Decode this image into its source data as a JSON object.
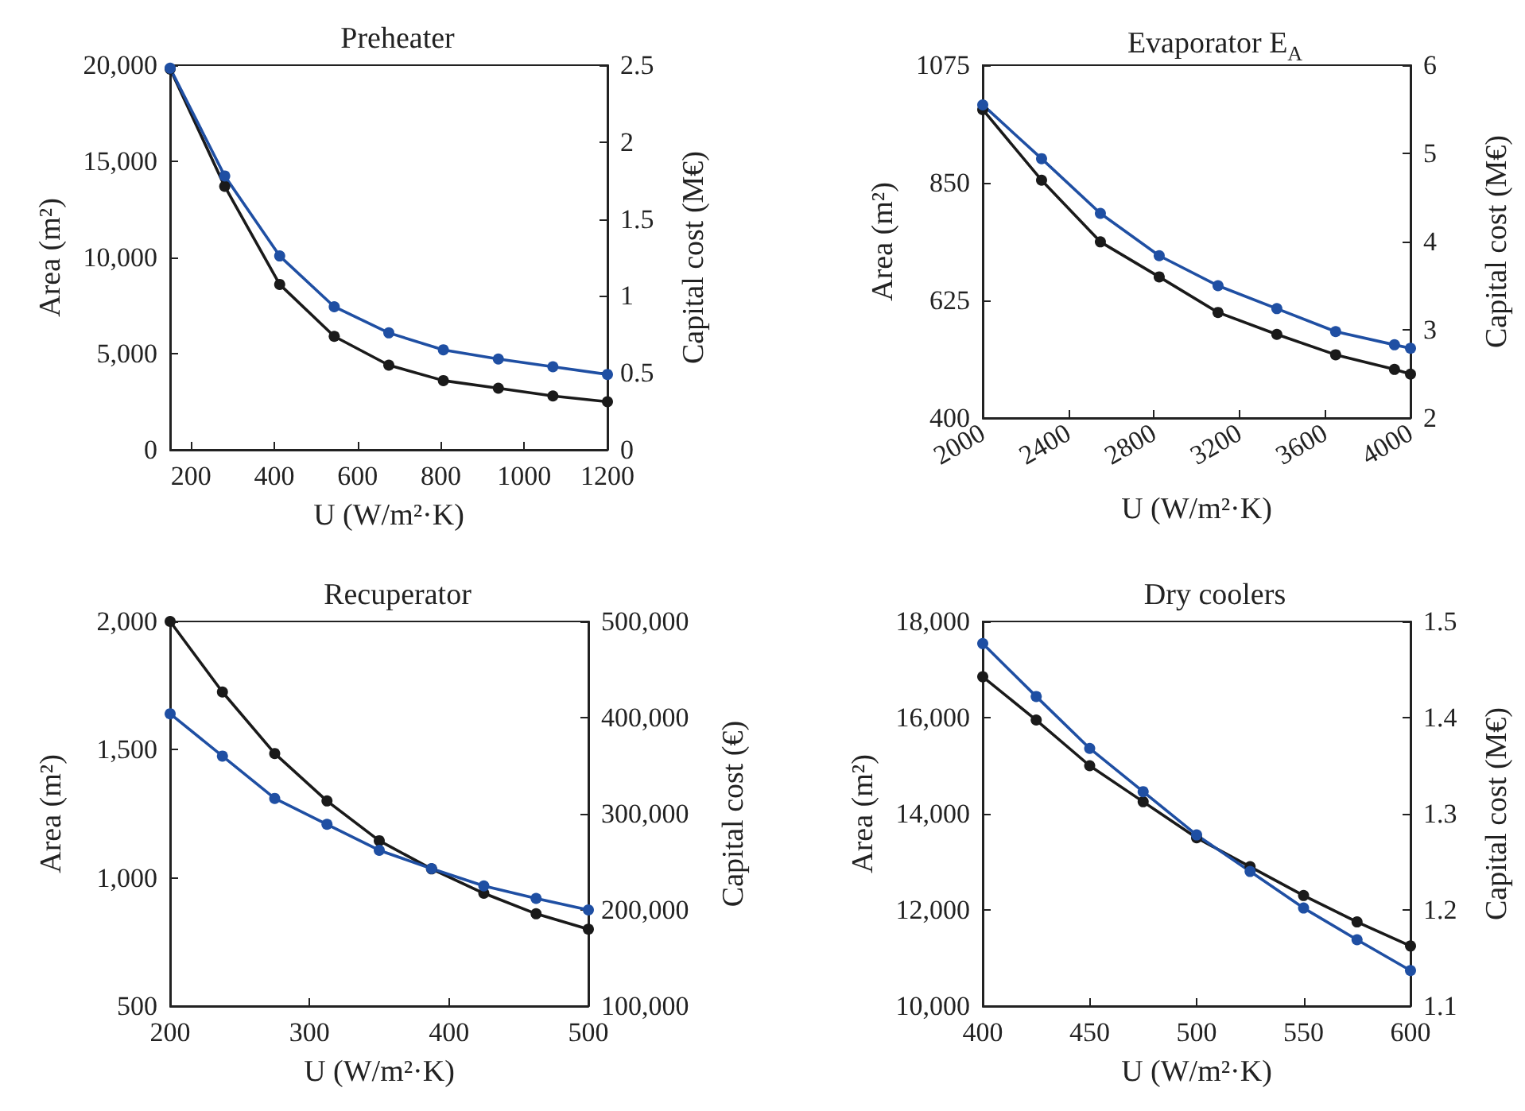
{
  "chart_data": [
    {
      "type": "line",
      "title": "Preheater",
      "xlabel": "U (W/m²·K)",
      "ylabel": "Area (m²)",
      "y2label": "Capital cost (M€)",
      "marker": "circle",
      "line_style": "solid",
      "x": [
        150,
        281,
        413,
        544,
        675,
        806,
        938,
        1069,
        1200
      ],
      "xlim": [
        150,
        1200
      ],
      "xticks": [
        200,
        400,
        600,
        800,
        1000,
        1200
      ],
      "ylim": [
        0,
        20000
      ],
      "yticks": [
        0,
        {
          "value": 5000,
          "label": "5,000"
        },
        {
          "value": 10000,
          "label": "10,000"
        },
        {
          "value": 15000,
          "label": "15,000"
        },
        {
          "value": 20000,
          "label": "20,000"
        }
      ],
      "y2lim": [
        0,
        2.5
      ],
      "y2ticks": [
        0,
        0.5,
        1,
        1.5,
        2,
        2.5
      ],
      "series": [
        {
          "color": "#1a1a1a",
          "values": [
            19800,
            13700,
            8600,
            5900,
            4400,
            3600,
            3200,
            2800,
            2500
          ]
        },
        {
          "color": "#1f4fa3",
          "axis": "y2",
          "values": [
            2.48,
            1.78,
            1.26,
            0.93,
            0.76,
            0.65,
            0.59,
            0.54,
            0.49
          ]
        }
      ]
    },
    {
      "type": "line",
      "title": "Evaporator E$_{A}$",
      "xlabel": "U (W/m²·K)",
      "ylabel": "Area (m²)",
      "y2label": "Capital cost (M€)",
      "marker": "circle",
      "line_style": "solid",
      "x": [
        2000,
        2275,
        2550,
        2825,
        3100,
        3375,
        3650,
        3925,
        4000
      ],
      "xlim": [
        2000,
        4000
      ],
      "xticks": [
        2000,
        2400,
        2800,
        3200,
        3600,
        4000
      ],
      "ylim": [
        400,
        1075
      ],
      "yticks": [
        400,
        625,
        850,
        1075
      ],
      "y2lim": [
        2,
        6
      ],
      "y2ticks": [
        2,
        3,
        4,
        5,
        6
      ],
      "series": [
        {
          "color": "#1a1a1a",
          "values": [
            990,
            855,
            737,
            670,
            602,
            560,
            521,
            493,
            484
          ]
        },
        {
          "color": "#1f4fa3",
          "axis": "y2",
          "values": [
            5.55,
            4.94,
            4.32,
            3.84,
            3.5,
            3.24,
            2.98,
            2.83,
            2.79
          ]
        }
      ]
    },
    {
      "type": "line",
      "title": "Recuperator",
      "xlabel": "U (W/m²·K)",
      "ylabel": "Area (m²)",
      "y2label": "Capital cost (€)",
      "marker": "circle",
      "line_style": "solid",
      "x": [
        200,
        237.5,
        275,
        312.5,
        350,
        387.5,
        425,
        462.5,
        500
      ],
      "xlim": [
        200,
        500
      ],
      "xticks": [
        200,
        300,
        400,
        500
      ],
      "ylim": [
        500,
        2000
      ],
      "yticks": [
        500,
        {
          "value": 1000,
          "label": "1,000"
        },
        {
          "value": 1500,
          "label": "1,500"
        },
        {
          "value": 2000,
          "label": "2,000"
        }
      ],
      "y2lim": [
        100000,
        500000
      ],
      "y2ticks": [
        {
          "value": 100000,
          "label": "100,000"
        },
        {
          "value": 200000,
          "label": "200,000"
        },
        {
          "value": 300000,
          "label": "300,000"
        },
        {
          "value": 400000,
          "label": "400,000"
        },
        {
          "value": 500000,
          "label": "500,000"
        }
      ],
      "series": [
        {
          "color": "#1a1a1a",
          "values": [
            2000,
            1725,
            1485,
            1300,
            1145,
            1035,
            940,
            860,
            800
          ]
        },
        {
          "color": "#1f4fa3",
          "axis": "y2",
          "values": [
            404000,
            360000,
            316000,
            289000,
            262000,
            243000,
            225000,
            212000,
            200000
          ]
        }
      ]
    },
    {
      "type": "line",
      "title": "Dry coolers",
      "xlabel": "U (W/m²·K)",
      "ylabel": "Area (m²)",
      "y2label": "Capital cost (M€)",
      "marker": "circle",
      "line_style": "solid",
      "x": [
        400,
        425,
        450,
        475,
        500,
        525,
        550,
        575,
        600
      ],
      "xlim": [
        400,
        600
      ],
      "xticks": [
        400,
        450,
        500,
        550,
        600
      ],
      "ylim": [
        10000,
        18000
      ],
      "yticks": [
        {
          "value": 10000,
          "label": "10,000"
        },
        {
          "value": 12000,
          "label": "12,000"
        },
        {
          "value": 14000,
          "label": "14,000"
        },
        {
          "value": 16000,
          "label": "16,000"
        },
        {
          "value": 18000,
          "label": "18,000"
        }
      ],
      "y2lim": [
        1.1,
        1.5
      ],
      "y2ticks": [
        1.1,
        1.2,
        1.3,
        1.4,
        1.5
      ],
      "series": [
        {
          "color": "#1a1a1a",
          "values": [
            16850,
            15950,
            15000,
            14250,
            13500,
            12900,
            12300,
            11750,
            11250
          ]
        },
        {
          "color": "#1f4fa3",
          "axis": "y2",
          "values": [
            1.477,
            1.422,
            1.368,
            1.323,
            1.278,
            1.24,
            1.202,
            1.169,
            1.137
          ]
        }
      ]
    }
  ]
}
